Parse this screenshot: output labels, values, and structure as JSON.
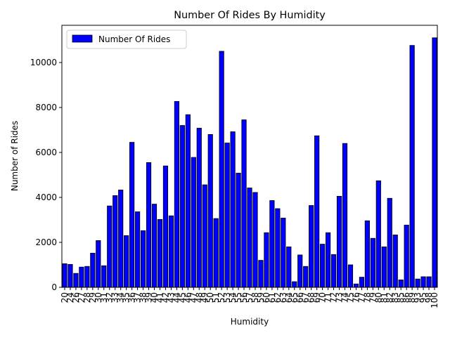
{
  "chart_data": {
    "type": "bar",
    "title": "Number Of Rides By Humidity",
    "xlabel": "Humidity",
    "ylabel": "Number of Rides",
    "categories": [
      "20",
      "24",
      "26",
      "27",
      "28",
      "29",
      "30",
      "31",
      "32",
      "33",
      "34",
      "35",
      "36",
      "37",
      "38",
      "39",
      "40",
      "41",
      "42",
      "43",
      "44",
      "45",
      "46",
      "47",
      "48",
      "49",
      "50",
      "51",
      "52",
      "53",
      "54",
      "55",
      "56",
      "57",
      "58",
      "59",
      "60",
      "61",
      "62",
      "63",
      "64",
      "65",
      "66",
      "67",
      "68",
      "69",
      "70",
      "71",
      "72",
      "73",
      "74",
      "75",
      "76",
      "77",
      "78",
      "79",
      "80",
      "81",
      "82",
      "83",
      "85",
      "86",
      "89",
      "93",
      "95",
      "98",
      "100"
    ],
    "series": [
      {
        "name": "Number Of Rides",
        "color": "#0000ff",
        "values": [
          1050,
          1020,
          620,
          900,
          930,
          1520,
          2080,
          960,
          3620,
          4080,
          4330,
          2300,
          6450,
          3360,
          2520,
          5550,
          3700,
          3020,
          5400,
          3180,
          8270,
          7200,
          7680,
          5780,
          7080,
          4560,
          6800,
          3060,
          10500,
          6420,
          6920,
          5080,
          7450,
          4420,
          4220,
          1200,
          2430,
          3860,
          3500,
          3080,
          1800,
          250,
          1440,
          930,
          3640,
          6740,
          1920,
          2430,
          1460,
          4050,
          6400,
          1000,
          150,
          450,
          2960,
          2180,
          4740,
          1800,
          3960,
          2330,
          330,
          2770,
          10760,
          370,
          470,
          470,
          11100
        ]
      }
    ],
    "ylim": [
      0,
      11656
    ],
    "yticks": [
      0,
      2000,
      4000,
      6000,
      8000,
      10000
    ],
    "grid": false,
    "legend": "upper left"
  }
}
